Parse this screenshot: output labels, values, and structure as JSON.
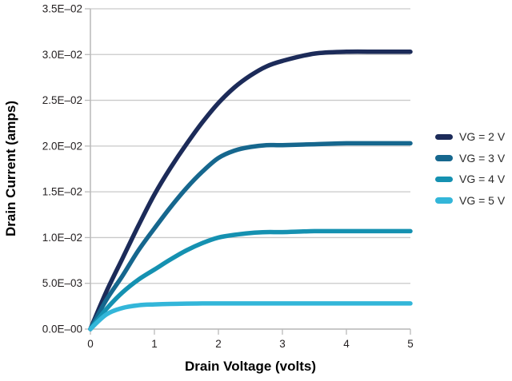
{
  "figure": {
    "background": "#ffffff",
    "text_color": "#231f20",
    "grid_color": "#c9c9c9",
    "axis_color": "#b9b9b9"
  },
  "chart_data": {
    "type": "line",
    "title": "",
    "xlabel": "Drain Voltage (volts)",
    "ylabel": "Drain Current (amps)",
    "xlim": [
      0,
      5
    ],
    "ylim": [
      0,
      0.035
    ],
    "grid": "horizontal-only",
    "legend_position": "right-outside",
    "x_ticks": [
      {
        "v": 0,
        "label": "0"
      },
      {
        "v": 1,
        "label": "1"
      },
      {
        "v": 2,
        "label": "2"
      },
      {
        "v": 3,
        "label": "3"
      },
      {
        "v": 4,
        "label": "4"
      },
      {
        "v": 5,
        "label": "5"
      }
    ],
    "y_ticks": [
      {
        "v": 0.0,
        "label": "0.0E–00"
      },
      {
        "v": 0.005,
        "label": "5.0E–03"
      },
      {
        "v": 0.01,
        "label": "1.0E–02"
      },
      {
        "v": 0.015,
        "label": "1.5E–02"
      },
      {
        "v": 0.02,
        "label": "2.0E–02"
      },
      {
        "v": 0.025,
        "label": "2.5E–02"
      },
      {
        "v": 0.03,
        "label": "3.0E–02"
      },
      {
        "v": 0.035,
        "label": "3.5E–02"
      }
    ],
    "x": [
      0,
      0.25,
      0.5,
      0.75,
      1,
      1.25,
      1.5,
      1.75,
      2,
      2.25,
      2.5,
      2.75,
      3,
      3.5,
      4,
      4.5,
      5
    ],
    "series": [
      {
        "name": "VG = 2 V",
        "color": "#1c2b59",
        "saturation_current": 0.0303,
        "values": [
          0,
          0.0041,
          0.0077,
          0.0113,
          0.0147,
          0.0176,
          0.0202,
          0.0226,
          0.0247,
          0.0264,
          0.0277,
          0.0287,
          0.0293,
          0.0301,
          0.0303,
          0.0303,
          0.0303
        ]
      },
      {
        "name": "VG = 3 V",
        "color": "#16678e",
        "saturation_current": 0.0203,
        "values": [
          0,
          0.0032,
          0.0058,
          0.0086,
          0.011,
          0.0133,
          0.0154,
          0.0172,
          0.0187,
          0.0195,
          0.0199,
          0.0201,
          0.0201,
          0.0202,
          0.0203,
          0.0203,
          0.0203
        ]
      },
      {
        "name": "VG = 4 V",
        "color": "#1591b1",
        "saturation_current": 0.0107,
        "values": [
          0,
          0.0022,
          0.004,
          0.0054,
          0.0065,
          0.0076,
          0.0086,
          0.0094,
          0.01,
          0.0103,
          0.0105,
          0.0106,
          0.0106,
          0.0107,
          0.0107,
          0.0107,
          0.0107
        ]
      },
      {
        "name": "VG = 5 V",
        "color": "#33b6d9",
        "saturation_current": 0.0028,
        "values": [
          0,
          0.0016,
          0.0023,
          0.0026,
          0.0027,
          0.00275,
          0.00278,
          0.0028,
          0.0028,
          0.0028,
          0.0028,
          0.0028,
          0.0028,
          0.0028,
          0.0028,
          0.0028,
          0.0028
        ]
      }
    ]
  }
}
